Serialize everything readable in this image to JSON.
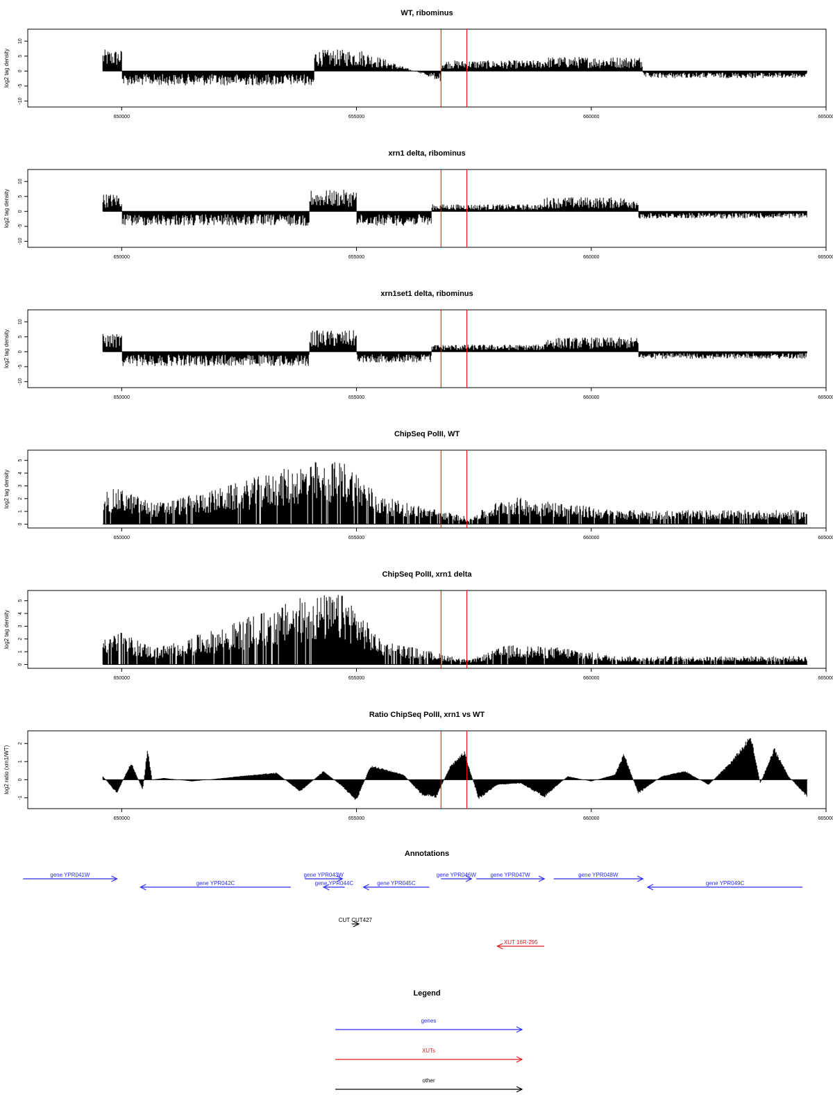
{
  "colors": {
    "gene": "#2b2bf5",
    "xut": "#e01b1b",
    "other": "#000000",
    "marker": "#ff0000",
    "bars": "#000000"
  },
  "chart_data": [
    {
      "type": "bar",
      "title": "WT, ribominus",
      "ylabel": "log2 tag density",
      "xlim": [
        648000,
        665000
      ],
      "ylim": [
        -12,
        14
      ],
      "yticks": [
        -10,
        -5,
        0,
        5,
        10
      ],
      "xticks": [
        650000,
        655000,
        660000,
        665000
      ],
      "data_range": [
        649600,
        664600
      ],
      "markers_x": [
        656800,
        657350
      ],
      "series": [
        {
          "x": [
            649600,
            650000,
            650001,
            654100,
            654101,
            655100,
            656800,
            656801,
            657600,
            659000,
            659001,
            661100,
            661101,
            664600
          ],
          "y": [
            6,
            6,
            -4,
            -4,
            6,
            6,
            -3,
            3,
            3,
            3,
            4,
            4,
            -2,
            -2
          ]
        }
      ]
    },
    {
      "type": "bar",
      "title": "xrn1 delta, ribominus",
      "ylabel": "log2 tag density",
      "xlim": [
        648000,
        665000
      ],
      "ylim": [
        -12,
        14
      ],
      "yticks": [
        -10,
        -5,
        0,
        5,
        10
      ],
      "xticks": [
        650000,
        655000,
        660000,
        665000
      ],
      "data_range": [
        649600,
        664600
      ],
      "markers_x": [
        656800,
        657350
      ],
      "series": [
        {
          "x": [
            649600,
            650000,
            650001,
            654000,
            654001,
            655000,
            655001,
            656600,
            656601,
            659000,
            659001,
            661000,
            661001,
            664600
          ],
          "y": [
            5,
            5,
            -4,
            -4,
            6,
            6,
            -4,
            -4,
            2,
            2,
            4,
            4,
            -2,
            -2
          ]
        }
      ]
    },
    {
      "type": "bar",
      "title": "xrn1set1 delta, ribominus",
      "ylabel": "log2 tag density",
      "xlim": [
        648000,
        665000
      ],
      "ylim": [
        -12,
        14
      ],
      "yticks": [
        -10,
        -5,
        0,
        5,
        10
      ],
      "xticks": [
        650000,
        655000,
        660000,
        665000
      ],
      "data_range": [
        649600,
        664600
      ],
      "markers_x": [
        656800,
        657350
      ],
      "series": [
        {
          "x": [
            649600,
            650000,
            650001,
            654000,
            654001,
            655000,
            655001,
            656600,
            656601,
            659000,
            659001,
            661000,
            661001,
            664600
          ],
          "y": [
            5,
            5,
            -4,
            -4,
            6,
            6,
            -3,
            -3,
            2,
            2,
            4,
            4,
            -2,
            -2
          ]
        }
      ]
    },
    {
      "type": "bar",
      "title": "ChipSeq PolII, WT",
      "ylabel": "log2 tag density",
      "xlim": [
        648000,
        665000
      ],
      "ylim": [
        -0.3,
        5.8
      ],
      "yticks": [
        0,
        1,
        2,
        3,
        4,
        5
      ],
      "xticks": [
        650000,
        655000,
        660000,
        665000
      ],
      "data_range": [
        649600,
        664600
      ],
      "markers_x": [
        656800,
        657350
      ],
      "series": [
        {
          "x": [
            649600,
            650000,
            650700,
            652000,
            654000,
            654800,
            655500,
            657400,
            658200,
            659500,
            660500,
            664600
          ],
          "y": [
            2.5,
            2.5,
            1.5,
            2.5,
            4.5,
            4.5,
            2.0,
            0.5,
            2.0,
            1.5,
            1.0,
            1.0
          ]
        }
      ]
    },
    {
      "type": "bar",
      "title": "ChipSeq PolII, xrn1 delta",
      "ylabel": "log2 tag density",
      "xlim": [
        648000,
        665000
      ],
      "ylim": [
        -0.3,
        5.8
      ],
      "yticks": [
        0,
        1,
        2,
        3,
        4,
        5
      ],
      "xticks": [
        650000,
        655000,
        660000,
        665000
      ],
      "data_range": [
        649600,
        664600
      ],
      "markers_x": [
        656800,
        657350
      ],
      "series": [
        {
          "x": [
            649600,
            650000,
            650700,
            652000,
            654000,
            654800,
            655500,
            657400,
            658200,
            659500,
            660500,
            664600
          ],
          "y": [
            2.3,
            2.3,
            1.2,
            2.5,
            5.0,
            5.0,
            1.8,
            0.3,
            1.4,
            1.2,
            0.6,
            0.6
          ]
        }
      ]
    },
    {
      "type": "area",
      "title": "Ratio ChipSeq PolII, xrn1 vs WT",
      "ylabel": "log2 ratio (xrn1/WT)",
      "xlim": [
        648000,
        665000
      ],
      "ylim": [
        -1.6,
        2.7
      ],
      "yticks": [
        -1,
        0,
        1,
        2
      ],
      "xticks": [
        650000,
        655000,
        660000,
        665000
      ],
      "data_range": [
        649600,
        664600
      ],
      "markers_x": [
        656800,
        657350
      ],
      "series": [
        {
          "x": [
            649600,
            649900,
            650200,
            650450,
            650550,
            650650,
            650900,
            651500,
            652500,
            653300,
            653800,
            654300,
            654700,
            655000,
            655300,
            655600,
            656000,
            656400,
            656700,
            657000,
            657300,
            657600,
            658000,
            658500,
            659000,
            659500,
            660000,
            660500,
            660700,
            661000,
            661500,
            662000,
            662500,
            663000,
            663400,
            663600,
            663900,
            664200,
            664600
          ],
          "y": [
            0.2,
            -0.8,
            1.0,
            -0.6,
            1.8,
            0.0,
            0.1,
            -0.1,
            0.2,
            0.4,
            -0.7,
            0.5,
            -0.4,
            -1.2,
            0.8,
            0.6,
            0.3,
            -0.9,
            -1.0,
            0.8,
            1.6,
            -1.1,
            -0.3,
            -0.2,
            -1.0,
            0.2,
            -0.1,
            0.3,
            1.5,
            -0.8,
            0.2,
            0.5,
            -0.3,
            1.1,
            2.5,
            -0.2,
            1.8,
            0.2,
            -1.0
          ]
        }
      ]
    }
  ],
  "annotations": {
    "title": "Annotations",
    "xlim": [
      648000,
      665000
    ],
    "features": [
      {
        "label": "gene YPR041W",
        "type": "gene",
        "direction": "right",
        "start": 647900,
        "end": 649900,
        "row": 0
      },
      {
        "label": "gene YPR042C",
        "type": "gene",
        "direction": "left",
        "start": 650400,
        "end": 653600,
        "row": 1
      },
      {
        "label": "gene YPR043W",
        "type": "gene",
        "direction": "right",
        "start": 653900,
        "end": 654700,
        "row": 0
      },
      {
        "label": "gene YPR044C",
        "type": "gene",
        "direction": "left",
        "start": 654300,
        "end": 654750,
        "row": 1
      },
      {
        "label": "gene YPR045C",
        "type": "gene",
        "direction": "left",
        "start": 655150,
        "end": 656550,
        "row": 1
      },
      {
        "label": "gene YPR046W",
        "type": "gene",
        "direction": "right",
        "start": 656800,
        "end": 657450,
        "row": 0
      },
      {
        "label": "gene YPR047W",
        "type": "gene",
        "direction": "right",
        "start": 657550,
        "end": 659000,
        "row": 0
      },
      {
        "label": "gene YPR048W",
        "type": "gene",
        "direction": "right",
        "start": 659200,
        "end": 661100,
        "row": 0
      },
      {
        "label": "gene YPR049C",
        "type": "gene",
        "direction": "left",
        "start": 661200,
        "end": 664500,
        "row": 1
      },
      {
        "label": "CUT CUT427",
        "type": "other",
        "direction": "right",
        "start": 654900,
        "end": 655050,
        "row": 2
      },
      {
        "label": "XUT 16R-295",
        "type": "xut",
        "direction": "left",
        "start": 658000,
        "end": 659000,
        "row": 3
      }
    ]
  },
  "legend": {
    "title": "Legend",
    "items": [
      {
        "label": "genes",
        "type": "gene"
      },
      {
        "label": "XUTs",
        "type": "xut"
      },
      {
        "label": "other",
        "type": "other"
      }
    ]
  }
}
